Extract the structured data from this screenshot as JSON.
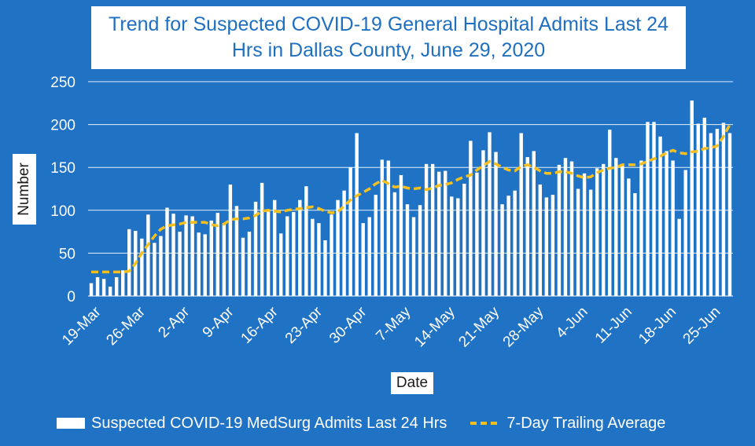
{
  "colors": {
    "background": "#1f72c4",
    "bars": "#ffffff",
    "average_line": "#f5c01e",
    "title_text": "#1f6fc0"
  },
  "chart_data": {
    "type": "bar",
    "title_line1": "Trend for Suspected COVID-19 General Hospital Admits Last 24",
    "title_line2": "Hrs in Dallas County, June 29, 2020",
    "xlabel": "Date",
    "ylabel": "Number",
    "ylim": [
      0,
      250
    ],
    "yticks": [
      0,
      50,
      100,
      150,
      200,
      250
    ],
    "grid": true,
    "legend_position": "bottom",
    "x_tick_labels": [
      "19-Mar",
      "26-Mar",
      "2-Apr",
      "9-Apr",
      "16-Apr",
      "23-Apr",
      "30-Apr",
      "7-May",
      "14-May",
      "21-May",
      "28-May",
      "4-Jun",
      "11-Jun",
      "18-Jun",
      "25-Jun"
    ],
    "x_tick_start_index": 0,
    "x_tick_step": 7,
    "series": [
      {
        "name": "Suspected COVID-19 MedSurg Admits Last 24 Hrs",
        "kind": "bar",
        "values": [
          15,
          22,
          20,
          11,
          22,
          30,
          78,
          76,
          67,
          95,
          62,
          70,
          103,
          96,
          75,
          94,
          93,
          74,
          72,
          88,
          97,
          84,
          130,
          105,
          68,
          75,
          110,
          132,
          100,
          112,
          73,
          93,
          98,
          112,
          128,
          90,
          85,
          65,
          95,
          112,
          123,
          150,
          190,
          85,
          92,
          118,
          159,
          158,
          121,
          141,
          107,
          92,
          106,
          154,
          154,
          145,
          146,
          116,
          114,
          131,
          181,
          144,
          170,
          191,
          168,
          107,
          117,
          123,
          190,
          162,
          169,
          130,
          115,
          118,
          153,
          161,
          157,
          125,
          143,
          124,
          149,
          154,
          194,
          161,
          152,
          137,
          120,
          158,
          203,
          203,
          186,
          169,
          158,
          90,
          147,
          228,
          201,
          208,
          190,
          195,
          202,
          190
        ]
      },
      {
        "name": "7-Day Trailing Average",
        "kind": "line",
        "values": [
          28,
          28,
          28,
          28,
          28,
          28,
          29,
          38,
          50,
          60,
          70,
          78,
          82,
          83,
          84,
          86,
          86,
          86,
          86,
          83,
          82,
          84,
          89,
          90,
          90,
          91,
          94,
          99,
          100,
          99,
          98,
          100,
          101,
          102,
          103,
          104,
          102,
          99,
          97,
          98,
          105,
          112,
          117,
          121,
          125,
          131,
          135,
          131,
          127,
          128,
          126,
          125,
          126,
          124,
          126,
          129,
          130,
          132,
          136,
          139,
          141,
          147,
          152,
          157,
          154,
          150,
          147,
          146,
          151,
          153,
          150,
          146,
          143,
          143,
          145,
          145,
          143,
          140,
          138,
          139,
          144,
          147,
          149,
          150,
          153,
          153,
          153,
          154,
          157,
          160,
          163,
          167,
          170,
          167,
          166,
          168,
          169,
          172,
          173,
          175,
          186,
          200
        ]
      }
    ]
  }
}
